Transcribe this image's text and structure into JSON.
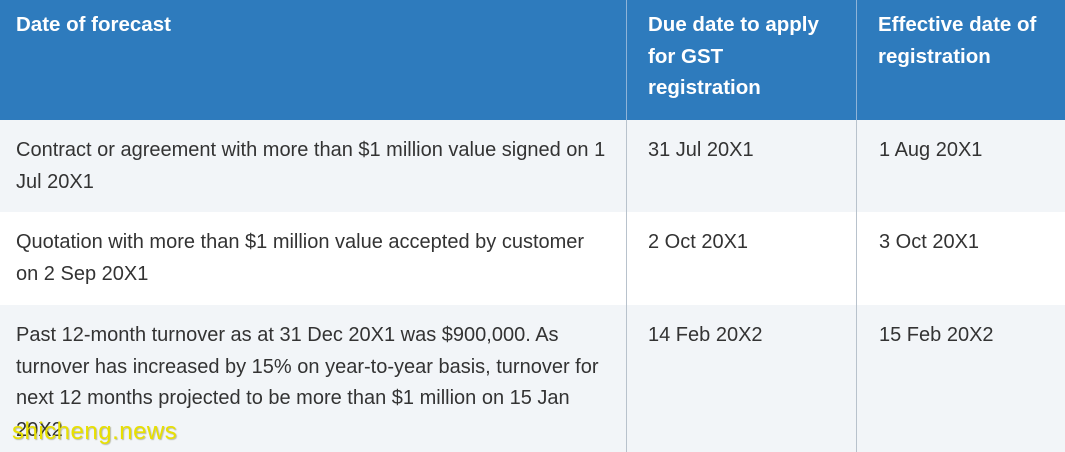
{
  "header": {
    "col1": "Date of forecast",
    "col2": "Due date to apply for GST registration",
    "col3": "Effective date of registration"
  },
  "rows": [
    {
      "forecast": "Contract or agreement with more than $1 million value signed on 1 Jul 20X1",
      "due_date": "31 Jul 20X1",
      "effective_date": "1 Aug 20X1"
    },
    {
      "forecast": "Quotation with more than $1 million value accepted by customer on 2 Sep 20X1",
      "due_date": "2 Oct 20X1",
      "effective_date": "3 Oct 20X1"
    },
    {
      "forecast": "Past 12-month turnover as at 31 Dec 20X1 was $900,000. As turnover has increased by 15% on year-to-year basis, turnover for next 12 months projected to be more than $1 million on 15 Jan 20X2",
      "due_date": "14 Feb 20X2",
      "effective_date": "15 Feb 20X2"
    }
  ],
  "watermark": "shicheng.news"
}
